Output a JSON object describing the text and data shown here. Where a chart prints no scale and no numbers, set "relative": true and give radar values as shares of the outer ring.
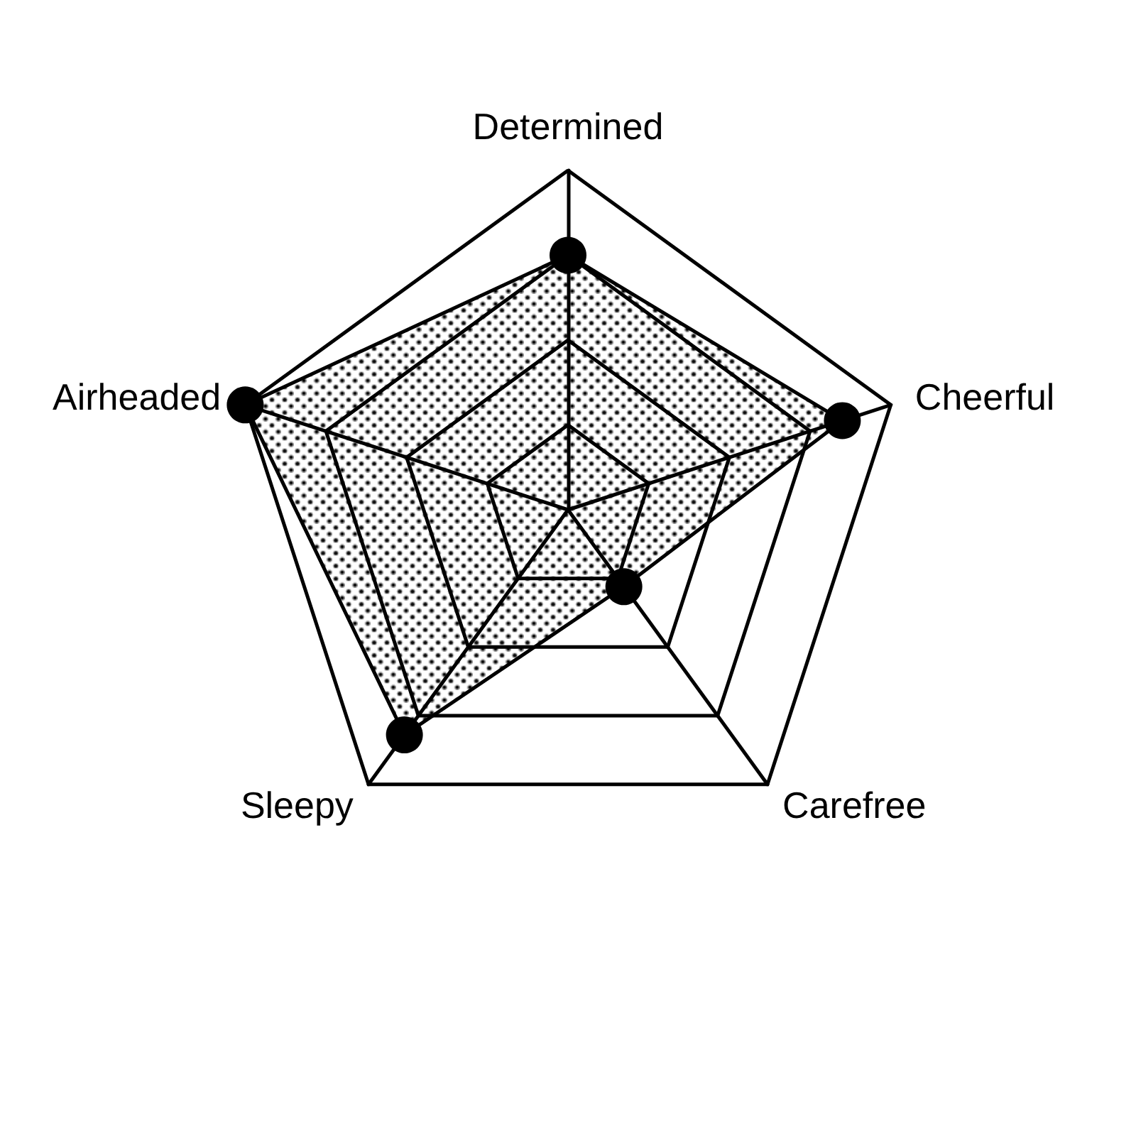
{
  "chart_data": {
    "type": "radar",
    "relative": true,
    "categories": [
      "Determined",
      "Cheerful",
      "Carefree",
      "Sleepy",
      "Airheaded"
    ],
    "series": [
      {
        "color": "#000000",
        "values": [
          0.75,
          0.85,
          0.28,
          0.82,
          1.0
        ]
      }
    ],
    "marker": "circle",
    "legend": false
  }
}
